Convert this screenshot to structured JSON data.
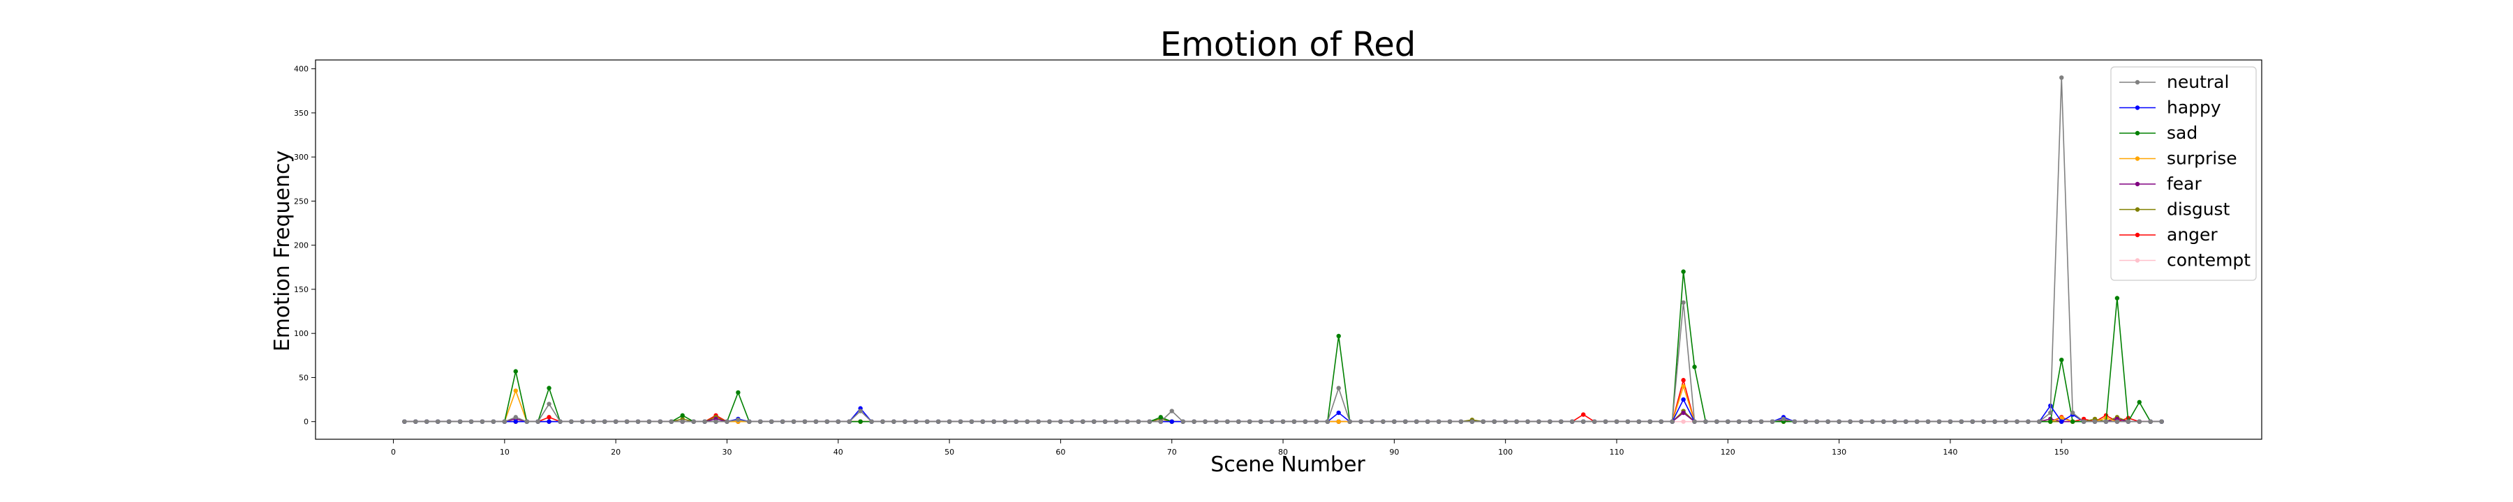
{
  "chart_data": {
    "type": "line",
    "title": "Emotion of Red",
    "xlabel": "Scene Number",
    "ylabel": "Emotion Frequency",
    "xlim": [
      -7,
      168
    ],
    "ylim": [
      -20,
      410
    ],
    "xticks": [
      0,
      10,
      20,
      30,
      40,
      50,
      60,
      70,
      80,
      90,
      100,
      110,
      120,
      130,
      140,
      150
    ],
    "yticks": [
      0,
      50,
      100,
      150,
      200,
      250,
      300,
      350,
      400
    ],
    "grid": false,
    "legend_position": "top-right",
    "x_start": 1,
    "x_end": 159,
    "series": [
      {
        "name": "neutral",
        "color": "#808080",
        "points": [
          [
            11,
            5
          ],
          [
            14,
            20
          ],
          [
            31,
            2
          ],
          [
            42,
            12
          ],
          [
            70,
            12
          ],
          [
            85,
            38
          ],
          [
            116,
            135
          ],
          [
            125,
            3
          ],
          [
            149,
            10
          ],
          [
            150,
            390
          ],
          [
            151,
            10
          ]
        ]
      },
      {
        "name": "happy",
        "color": "#0000ff",
        "points": [
          [
            31,
            3
          ],
          [
            42,
            15
          ],
          [
            85,
            10
          ],
          [
            116,
            25
          ],
          [
            125,
            5
          ],
          [
            149,
            18
          ],
          [
            151,
            8
          ]
        ]
      },
      {
        "name": "sad",
        "color": "#008000",
        "points": [
          [
            11,
            57
          ],
          [
            14,
            38
          ],
          [
            26,
            7
          ],
          [
            31,
            33
          ],
          [
            69,
            5
          ],
          [
            85,
            97
          ],
          [
            116,
            170
          ],
          [
            117,
            62
          ],
          [
            150,
            70
          ],
          [
            155,
            140
          ],
          [
            157,
            22
          ]
        ]
      },
      {
        "name": "surprise",
        "color": "#ffa500",
        "points": [
          [
            11,
            35
          ],
          [
            116,
            40
          ],
          [
            150,
            4
          ],
          [
            154,
            4
          ]
        ]
      },
      {
        "name": "fear",
        "color": "#800080",
        "points": [
          [
            11,
            3
          ],
          [
            29,
            3
          ],
          [
            116,
            10
          ],
          [
            125,
            2
          ],
          [
            149,
            3
          ],
          [
            155,
            3
          ]
        ]
      },
      {
        "name": "disgust",
        "color": "#808000",
        "points": [
          [
            26,
            3
          ],
          [
            29,
            5
          ],
          [
            69,
            3
          ],
          [
            97,
            2
          ],
          [
            116,
            12
          ],
          [
            153,
            3
          ],
          [
            155,
            5
          ]
        ]
      },
      {
        "name": "anger",
        "color": "#ff0000",
        "points": [
          [
            14,
            5
          ],
          [
            29,
            7
          ],
          [
            107,
            8
          ],
          [
            116,
            47
          ],
          [
            150,
            5
          ],
          [
            152,
            3
          ],
          [
            154,
            7
          ],
          [
            156,
            4
          ]
        ]
      },
      {
        "name": "contempt",
        "color": "#ffc0cb",
        "points": []
      }
    ]
  }
}
